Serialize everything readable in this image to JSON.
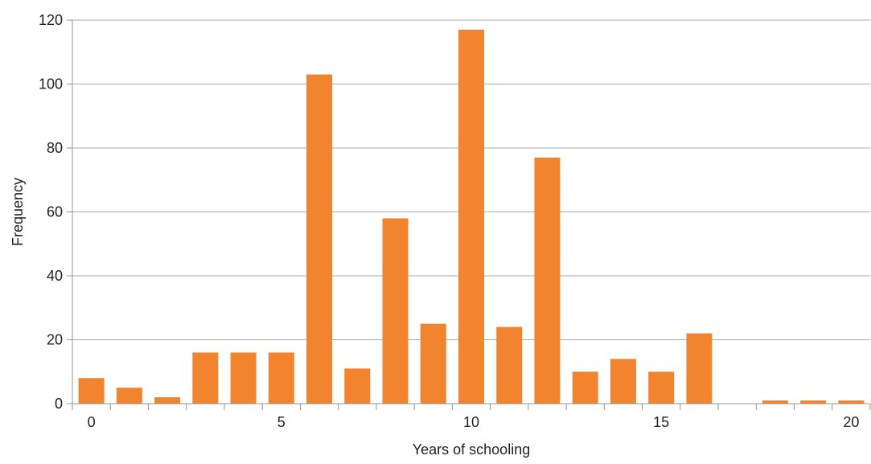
{
  "chart_data": {
    "type": "bar",
    "xlabel": "Years of schooling",
    "ylabel": "Frequency",
    "x": [
      0,
      1,
      2,
      3,
      4,
      5,
      6,
      7,
      8,
      9,
      10,
      11,
      12,
      13,
      14,
      15,
      16,
      17,
      18,
      19,
      20
    ],
    "values": [
      8,
      5,
      2,
      16,
      16,
      16,
      103,
      11,
      58,
      25,
      117,
      24,
      77,
      10,
      14,
      10,
      22,
      0,
      1,
      1,
      1
    ],
    "xticks": [
      0,
      5,
      10,
      15,
      20
    ],
    "yticks": [
      0,
      20,
      40,
      60,
      80,
      100,
      120
    ],
    "ylim": [
      0,
      120
    ],
    "grid": "horizontal",
    "bar_color": "#f28430",
    "grid_color": "#a7a9ac",
    "axis_color": "#939598"
  }
}
